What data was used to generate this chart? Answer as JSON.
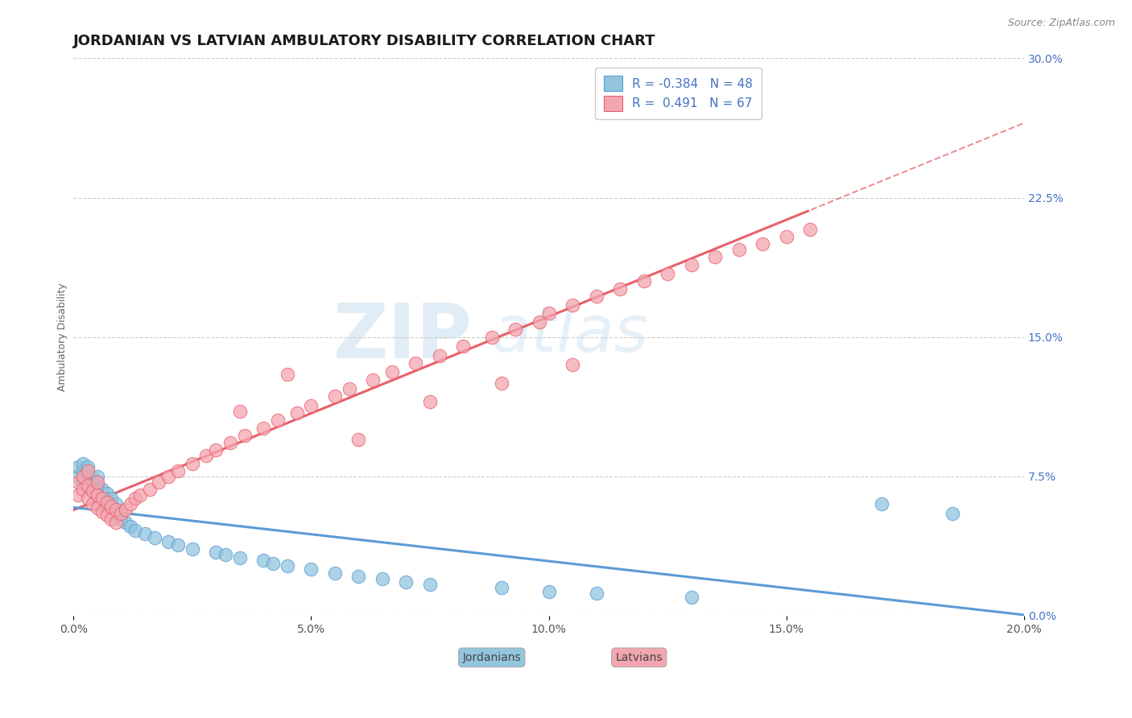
{
  "title": "JORDANIAN VS LATVIAN AMBULATORY DISABILITY CORRELATION CHART",
  "source": "Source: ZipAtlas.com",
  "ylabel": "Ambulatory Disability",
  "xlim": [
    0.0,
    0.2
  ],
  "ylim": [
    0.0,
    0.3
  ],
  "xticks": [
    0.0,
    0.05,
    0.1,
    0.15,
    0.2
  ],
  "xtick_labels": [
    "0.0%",
    "5.0%",
    "10.0%",
    "15.0%",
    "20.0%"
  ],
  "yticks_right": [
    0.0,
    0.075,
    0.15,
    0.225,
    0.3
  ],
  "ytick_labels_right": [
    "0.0%",
    "7.5%",
    "15.0%",
    "22.5%",
    "30.0%"
  ],
  "legend_R_jordan": "-0.384",
  "legend_N_jordan": "48",
  "legend_R_latvian": "0.491",
  "legend_N_latvian": "67",
  "color_jordan": "#92C5DE",
  "color_latvian": "#F4A6B0",
  "trend_color_jordan": "#5B9BD5",
  "trend_color_latvian": "#E8606A",
  "background_color": "#FFFFFF",
  "watermark_zip": "ZIP",
  "watermark_atlas": "atlas",
  "jordan_x": [
    0.001,
    0.001,
    0.002,
    0.002,
    0.002,
    0.003,
    0.003,
    0.003,
    0.004,
    0.004,
    0.005,
    0.005,
    0.005,
    0.006,
    0.006,
    0.007,
    0.007,
    0.008,
    0.008,
    0.009,
    0.009,
    0.01,
    0.011,
    0.012,
    0.013,
    0.015,
    0.017,
    0.02,
    0.022,
    0.025,
    0.03,
    0.032,
    0.035,
    0.04,
    0.042,
    0.045,
    0.05,
    0.055,
    0.06,
    0.065,
    0.07,
    0.075,
    0.09,
    0.1,
    0.11,
    0.13,
    0.17,
    0.185
  ],
  "jordan_y": [
    0.075,
    0.08,
    0.072,
    0.078,
    0.082,
    0.07,
    0.076,
    0.08,
    0.068,
    0.074,
    0.065,
    0.07,
    0.075,
    0.063,
    0.068,
    0.06,
    0.066,
    0.058,
    0.063,
    0.055,
    0.06,
    0.052,
    0.05,
    0.048,
    0.046,
    0.044,
    0.042,
    0.04,
    0.038,
    0.036,
    0.034,
    0.033,
    0.031,
    0.03,
    0.028,
    0.027,
    0.025,
    0.023,
    0.021,
    0.02,
    0.018,
    0.017,
    0.015,
    0.013,
    0.012,
    0.01,
    0.06,
    0.055
  ],
  "latvian_x": [
    0.001,
    0.001,
    0.002,
    0.002,
    0.003,
    0.003,
    0.003,
    0.004,
    0.004,
    0.005,
    0.005,
    0.005,
    0.006,
    0.006,
    0.007,
    0.007,
    0.008,
    0.008,
    0.009,
    0.009,
    0.01,
    0.011,
    0.012,
    0.013,
    0.014,
    0.016,
    0.018,
    0.02,
    0.022,
    0.025,
    0.028,
    0.03,
    0.033,
    0.036,
    0.04,
    0.043,
    0.047,
    0.05,
    0.055,
    0.058,
    0.063,
    0.067,
    0.072,
    0.077,
    0.082,
    0.088,
    0.093,
    0.098,
    0.1,
    0.105,
    0.11,
    0.115,
    0.12,
    0.125,
    0.13,
    0.135,
    0.14,
    0.145,
    0.15,
    0.155,
    0.035,
    0.045,
    0.06,
    0.075,
    0.09,
    0.105,
    0.13
  ],
  "latvian_y": [
    0.065,
    0.072,
    0.068,
    0.075,
    0.063,
    0.07,
    0.078,
    0.06,
    0.067,
    0.058,
    0.065,
    0.072,
    0.056,
    0.063,
    0.054,
    0.061,
    0.052,
    0.059,
    0.05,
    0.057,
    0.055,
    0.057,
    0.06,
    0.063,
    0.065,
    0.068,
    0.072,
    0.075,
    0.078,
    0.082,
    0.086,
    0.089,
    0.093,
    0.097,
    0.101,
    0.105,
    0.109,
    0.113,
    0.118,
    0.122,
    0.127,
    0.131,
    0.136,
    0.14,
    0.145,
    0.15,
    0.154,
    0.158,
    0.163,
    0.167,
    0.172,
    0.176,
    0.18,
    0.184,
    0.189,
    0.193,
    0.197,
    0.2,
    0.204,
    0.208,
    0.11,
    0.13,
    0.095,
    0.115,
    0.125,
    0.135,
    0.28
  ],
  "title_fontsize": 13,
  "axis_label_fontsize": 9,
  "tick_fontsize": 10,
  "legend_fontsize": 11
}
